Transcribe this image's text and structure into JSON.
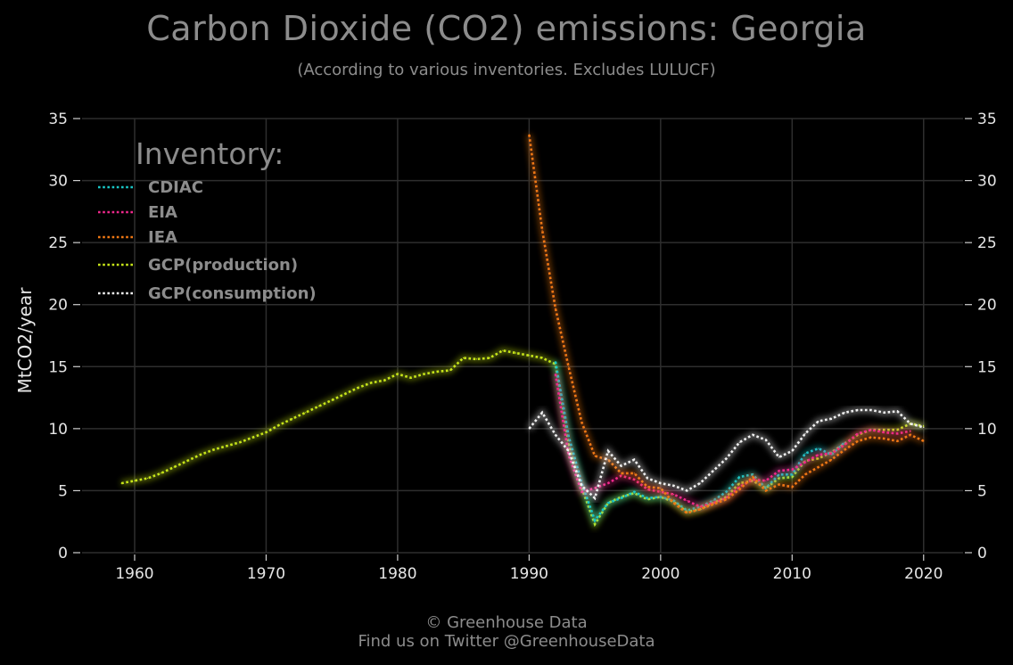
{
  "header": {
    "title": "Carbon Dioxide (CO2) emissions: Georgia",
    "subtitle": "(According to various inventories. Excludes LULUCF)"
  },
  "footer": {
    "line1": "© Greenhouse Data",
    "line2": "Find us on Twitter @GreenhouseData"
  },
  "chart_data": {
    "type": "line",
    "title": "Carbon Dioxide (CO2) emissions: Georgia",
    "subtitle": "(According to various inventories. Excludes LULUCF)",
    "xlabel": "",
    "ylabel": "MtCO2/year",
    "xlim": [
      1956,
      2023
    ],
    "ylim": [
      0,
      35
    ],
    "x_ticks": [
      1960,
      1970,
      1980,
      1990,
      2000,
      2010,
      2020
    ],
    "y_ticks": [
      0,
      5,
      10,
      15,
      20,
      25,
      30,
      35
    ],
    "grid": true,
    "legend_title": "Inventory:",
    "legend_position": "top-left",
    "series": [
      {
        "name": "GCP(production)",
        "color": "#c8e619",
        "x": [
          1959,
          1960,
          1961,
          1962,
          1963,
          1964,
          1965,
          1966,
          1967,
          1968,
          1969,
          1970,
          1971,
          1972,
          1973,
          1974,
          1975,
          1976,
          1977,
          1978,
          1979,
          1980,
          1981,
          1982,
          1983,
          1984,
          1985,
          1986,
          1987,
          1988,
          1989,
          1990,
          1991,
          1992,
          1993,
          1994,
          1995,
          1996,
          1997,
          1998,
          1999,
          2000,
          2001,
          2002,
          2003,
          2004,
          2005,
          2006,
          2007,
          2008,
          2009,
          2010,
          2011,
          2012,
          2013,
          2014,
          2015,
          2016,
          2017,
          2018,
          2019,
          2020
        ],
        "y": [
          5.6,
          5.8,
          6.0,
          6.4,
          6.9,
          7.4,
          7.9,
          8.3,
          8.6,
          8.9,
          9.3,
          9.7,
          10.3,
          10.8,
          11.3,
          11.8,
          12.3,
          12.8,
          13.3,
          13.7,
          13.9,
          14.4,
          14.1,
          14.4,
          14.6,
          14.7,
          15.7,
          15.6,
          15.7,
          16.3,
          16.1,
          15.9,
          15.7,
          15.2,
          8.8,
          5.2,
          2.3,
          4.0,
          4.5,
          4.8,
          4.3,
          4.5,
          4.1,
          3.3,
          3.5,
          4.0,
          4.5,
          5.6,
          5.8,
          5.2,
          6.0,
          6.1,
          7.4,
          7.6,
          8.1,
          8.8,
          9.5,
          9.9,
          9.9,
          9.9,
          10.4,
          10.2
        ]
      },
      {
        "name": "CDIAC",
        "color": "#19c8c8",
        "x": [
          1992,
          1993,
          1994,
          1995,
          1996,
          1997,
          1998,
          1999,
          2000,
          2001,
          2002,
          2003,
          2004,
          2005,
          2006,
          2007,
          2008,
          2009,
          2010,
          2011,
          2012,
          2013,
          2014
        ],
        "y": [
          15.4,
          9.4,
          5.6,
          2.6,
          4.0,
          4.4,
          4.9,
          4.4,
          4.5,
          4.2,
          3.4,
          3.7,
          4.2,
          4.9,
          6.1,
          6.3,
          5.2,
          6.3,
          6.3,
          8.0,
          8.4,
          7.9,
          8.9
        ]
      },
      {
        "name": "EIA",
        "color": "#f0288c",
        "x": [
          1992,
          1993,
          1994,
          1995,
          1996,
          1997,
          1998,
          1999,
          2000,
          2001,
          2002,
          2003,
          2004,
          2005,
          2006,
          2007,
          2008,
          2009,
          2010,
          2011,
          2012,
          2013,
          2014,
          2015,
          2016,
          2017,
          2018,
          2019
        ],
        "y": [
          14.4,
          7.9,
          4.9,
          5.2,
          5.6,
          6.2,
          5.9,
          5.1,
          4.9,
          4.7,
          4.2,
          3.7,
          4.0,
          4.4,
          5.3,
          5.9,
          5.8,
          6.6,
          6.7,
          7.3,
          7.9,
          8.0,
          8.7,
          9.6,
          9.9,
          9.7,
          9.6,
          9.8
        ]
      },
      {
        "name": "IEA",
        "color": "#f07814",
        "x": [
          1990,
          1991,
          1992,
          1993,
          1994,
          1995,
          1996,
          1997,
          1998,
          1999,
          2000,
          2001,
          2002,
          2003,
          2004,
          2005,
          2006,
          2007,
          2008,
          2009,
          2010,
          2011,
          2012,
          2013,
          2014,
          2015,
          2016,
          2017,
          2018,
          2019,
          2020
        ],
        "y": [
          33.7,
          26.0,
          19.7,
          15.0,
          10.5,
          7.8,
          7.5,
          6.4,
          6.4,
          5.3,
          5.2,
          4.0,
          3.2,
          3.5,
          3.9,
          4.3,
          5.1,
          6.1,
          5.0,
          5.5,
          5.3,
          6.3,
          6.9,
          7.5,
          8.3,
          9.0,
          9.3,
          9.2,
          9.0,
          9.5,
          9.0
        ]
      },
      {
        "name": "GCP(consumption)",
        "color": "#f0f0f0",
        "x": [
          1990,
          1991,
          1992,
          1993,
          1994,
          1995,
          1996,
          1997,
          1998,
          1999,
          2000,
          2001,
          2002,
          2003,
          2004,
          2005,
          2006,
          2007,
          2008,
          2009,
          2010,
          2011,
          2012,
          2013,
          2014,
          2015,
          2016,
          2017,
          2018,
          2019,
          2020
        ],
        "y": [
          10.0,
          11.3,
          9.5,
          8.2,
          5.4,
          4.4,
          8.2,
          7.0,
          7.5,
          6.0,
          5.6,
          5.4,
          5.0,
          5.6,
          6.6,
          7.6,
          8.9,
          9.5,
          9.1,
          7.7,
          8.2,
          9.6,
          10.6,
          10.8,
          11.3,
          11.5,
          11.5,
          11.3,
          11.4,
          10.4,
          10.1
        ]
      }
    ]
  }
}
